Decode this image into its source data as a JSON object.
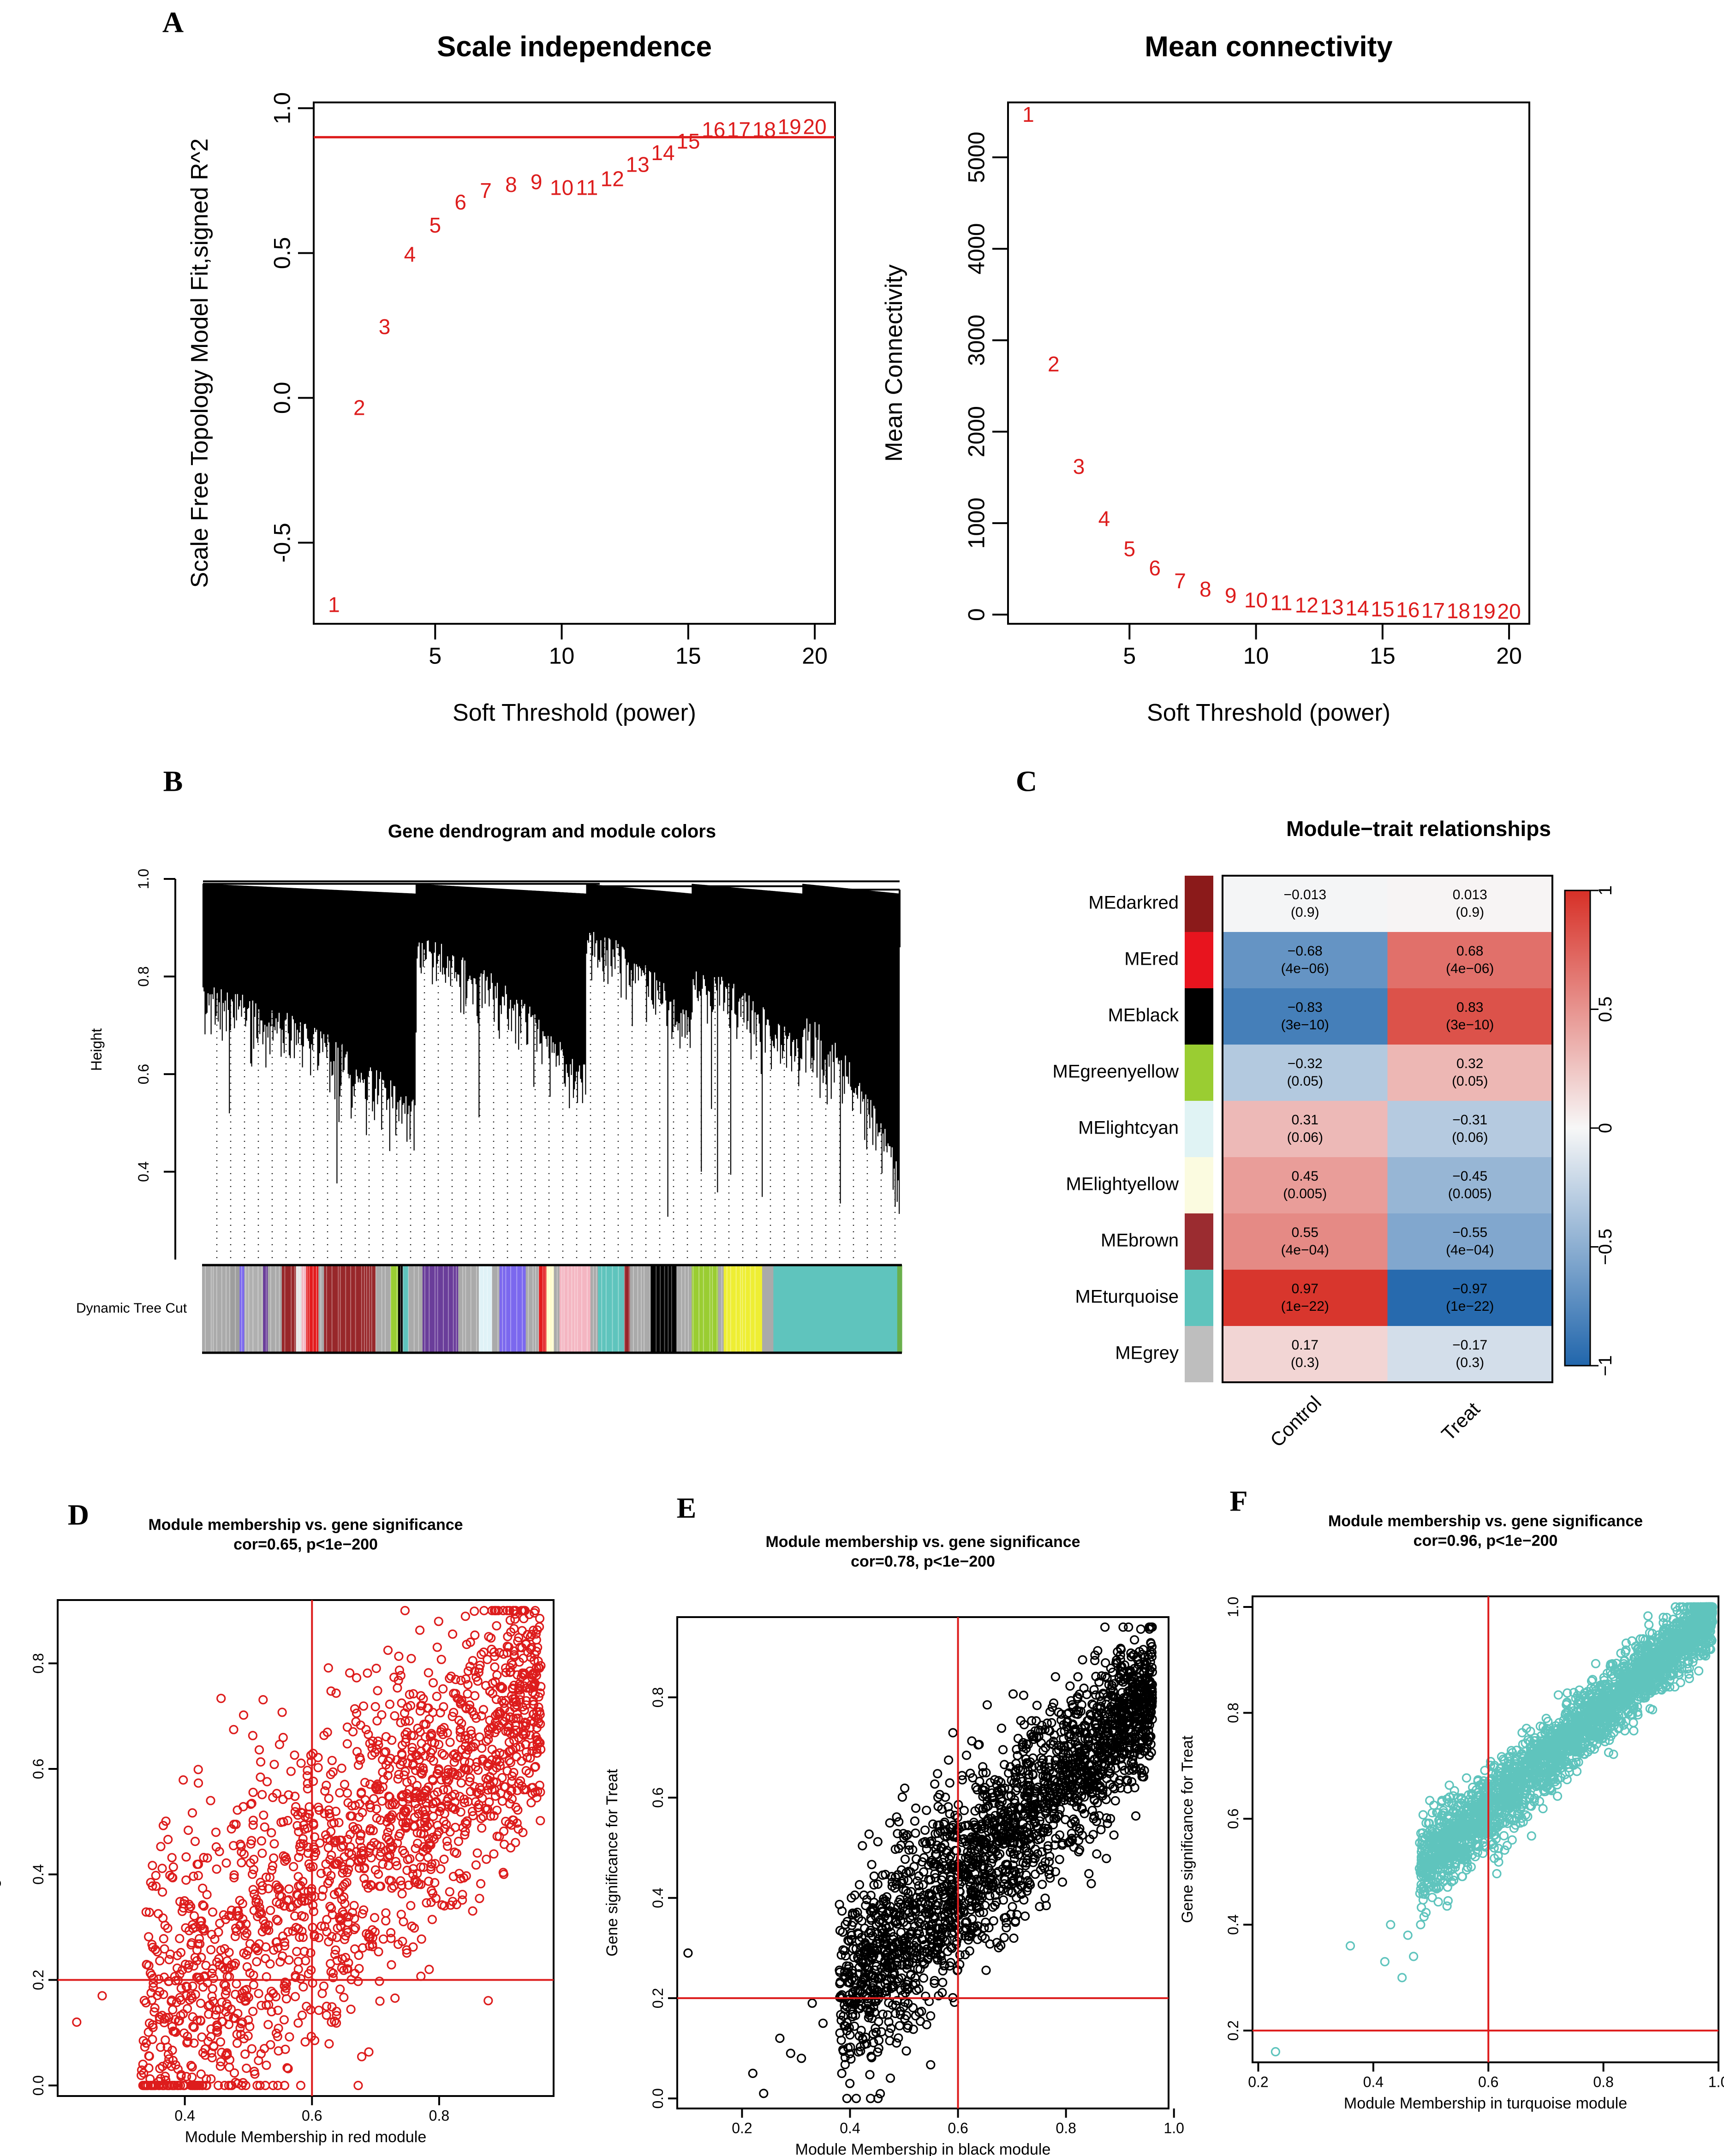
{
  "colors": {
    "red": "#dd1c1c",
    "black": "#000000",
    "turquoise": "#5fc4bd",
    "heat_low": "#2166ac",
    "heat_mid": "#f7f7f7",
    "heat_high": "#d73027"
  },
  "panel_letters": [
    "A",
    "B",
    "C",
    "D",
    "E",
    "F"
  ],
  "chart_data": [
    {
      "panel": "A",
      "type": "scatter",
      "title": "Scale independence",
      "xlabel": "Soft Threshold (power)",
      "ylabel": "Scale Free Topology Model Fit,signed R^2",
      "xlim": [
        0.2,
        20.8
      ],
      "ylim": [
        -0.78,
        1.02
      ],
      "xticks": [
        5,
        10,
        15,
        20
      ],
      "yticks": [
        -0.5,
        0.0,
        0.5,
        1.0
      ],
      "ytick_labels": [
        "-0.5",
        "0.0",
        "0.5",
        "1.0"
      ],
      "hline": 0.9,
      "points": [
        {
          "label": "1",
          "x": 1,
          "y": -0.72
        },
        {
          "label": "2",
          "x": 2,
          "y": -0.04
        },
        {
          "label": "3",
          "x": 3,
          "y": 0.24
        },
        {
          "label": "4",
          "x": 4,
          "y": 0.49
        },
        {
          "label": "5",
          "x": 5,
          "y": 0.59
        },
        {
          "label": "6",
          "x": 6,
          "y": 0.67
        },
        {
          "label": "7",
          "x": 7,
          "y": 0.71
        },
        {
          "label": "8",
          "x": 8,
          "y": 0.73
        },
        {
          "label": "9",
          "x": 9,
          "y": 0.74
        },
        {
          "label": "10",
          "x": 10,
          "y": 0.72
        },
        {
          "label": "11",
          "x": 11,
          "y": 0.72
        },
        {
          "label": "12",
          "x": 12,
          "y": 0.75
        },
        {
          "label": "13",
          "x": 13,
          "y": 0.8
        },
        {
          "label": "14",
          "x": 14,
          "y": 0.84
        },
        {
          "label": "15",
          "x": 15,
          "y": 0.88
        },
        {
          "label": "16",
          "x": 16,
          "y": 0.92
        },
        {
          "label": "17",
          "x": 17,
          "y": 0.92
        },
        {
          "label": "18",
          "x": 18,
          "y": 0.92
        },
        {
          "label": "19",
          "x": 19,
          "y": 0.93
        },
        {
          "label": "20",
          "x": 20,
          "y": 0.93
        }
      ]
    },
    {
      "panel": "A",
      "type": "scatter",
      "title": "Mean connectivity",
      "xlabel": "Soft Threshold (power)",
      "ylabel": "Mean Connectivity",
      "xlim": [
        0.2,
        20.8
      ],
      "ylim": [
        -100,
        5600
      ],
      "xticks": [
        5,
        10,
        15,
        20
      ],
      "yticks": [
        0,
        1000,
        2000,
        3000,
        4000,
        5000
      ],
      "points": [
        {
          "label": "1",
          "x": 1,
          "y": 5450
        },
        {
          "label": "2",
          "x": 2,
          "y": 2720
        },
        {
          "label": "3",
          "x": 3,
          "y": 1600
        },
        {
          "label": "4",
          "x": 4,
          "y": 1030
        },
        {
          "label": "5",
          "x": 5,
          "y": 700
        },
        {
          "label": "6",
          "x": 6,
          "y": 490
        },
        {
          "label": "7",
          "x": 7,
          "y": 350
        },
        {
          "label": "8",
          "x": 8,
          "y": 260
        },
        {
          "label": "9",
          "x": 9,
          "y": 190
        },
        {
          "label": "10",
          "x": 10,
          "y": 140
        },
        {
          "label": "11",
          "x": 11,
          "y": 110
        },
        {
          "label": "12",
          "x": 12,
          "y": 85
        },
        {
          "label": "13",
          "x": 13,
          "y": 65
        },
        {
          "label": "14",
          "x": 14,
          "y": 52
        },
        {
          "label": "15",
          "x": 15,
          "y": 42
        },
        {
          "label": "16",
          "x": 16,
          "y": 34
        },
        {
          "label": "17",
          "x": 17,
          "y": 28
        },
        {
          "label": "18",
          "x": 18,
          "y": 23
        },
        {
          "label": "19",
          "x": 19,
          "y": 19
        },
        {
          "label": "20",
          "x": 20,
          "y": 16
        }
      ]
    },
    {
      "panel": "B",
      "type": "dendrogram",
      "title": "Gene dendrogram and module colors",
      "ylabel": "Height",
      "ylim": [
        0.22,
        1.0
      ],
      "yticks": [
        0.4,
        0.6,
        0.8,
        1.0
      ],
      "ytick_labels": [
        "0.4",
        "0.6",
        "0.8",
        "1.0"
      ],
      "color_bar_label": "Dynamic Tree Cut",
      "module_strip": [
        {
          "color": "#aaaaaa",
          "w": 3
        },
        {
          "color": "#9e9e9e",
          "w": 1
        },
        {
          "color": "#7b68ee",
          "w": 0.5
        },
        {
          "color": "#b0b0b0",
          "w": 2
        },
        {
          "color": "#6a3d9a",
          "w": 0.5
        },
        {
          "color": "#aaaaaa",
          "w": 1.5
        },
        {
          "color": "#98272a",
          "w": 1.5
        },
        {
          "color": "#e5e5e5",
          "w": 0.6
        },
        {
          "color": "#f4b6c2",
          "w": 0.5
        },
        {
          "color": "#e31a1c",
          "w": 1.3
        },
        {
          "color": "#aaaaaa",
          "w": 0.6
        },
        {
          "color": "#98272a",
          "w": 5.5
        },
        {
          "color": "#aaaaaa",
          "w": 1.6
        },
        {
          "color": "#9acd32",
          "w": 0.8
        },
        {
          "color": "#000000",
          "w": 0.5
        },
        {
          "color": "#5fc4bd",
          "w": 0.6
        },
        {
          "color": "#aaaaaa",
          "w": 1.5
        },
        {
          "color": "#6a3d9a",
          "w": 3.8
        },
        {
          "color": "#aaaaaa",
          "w": 2.2
        },
        {
          "color": "#dff2f7",
          "w": 1.4
        },
        {
          "color": "#aaaaaa",
          "w": 0.8
        },
        {
          "color": "#7b68ee",
          "w": 2.8
        },
        {
          "color": "#aaaaaa",
          "w": 1.4
        },
        {
          "color": "#e31a1c",
          "w": 0.8
        },
        {
          "color": "#fffccc",
          "w": 0.8
        },
        {
          "color": "#aaaaaa",
          "w": 0.6
        },
        {
          "color": "#f4b6c2",
          "w": 3.3
        },
        {
          "color": "#aaaaaa",
          "w": 0.8
        },
        {
          "color": "#5fc4bd",
          "w": 2.8
        },
        {
          "color": "#98272a",
          "w": 0.6
        },
        {
          "color": "#aaaaaa",
          "w": 2.2
        },
        {
          "color": "#000000",
          "w": 2.8
        },
        {
          "color": "#aaaaaa",
          "w": 1.6
        },
        {
          "color": "#9acd32",
          "w": 2.8
        },
        {
          "color": "#aaaaaa",
          "w": 0.6
        },
        {
          "color": "#eeee33",
          "w": 4.1
        },
        {
          "color": "#aaaaaa",
          "w": 1.2
        },
        {
          "color": "#5fc4bd",
          "w": 13.2
        },
        {
          "color": "#6ab04c",
          "w": 0.5
        }
      ]
    },
    {
      "panel": "C",
      "type": "heatmap",
      "title": "Module−trait relationships",
      "columns": [
        "Control",
        "Treat"
      ],
      "rows": [
        {
          "name": "MEdarkred",
          "color": "#8b1a1a",
          "values": [
            "−0.013",
            "0.013"
          ],
          "p": [
            "(0.9)",
            "(0.9)"
          ],
          "r": [
            -0.013,
            0.013
          ]
        },
        {
          "name": "MEred",
          "color": "#e8141e",
          "values": [
            "−0.68",
            "0.68"
          ],
          "p": [
            "(4e−06)",
            "(4e−06)"
          ],
          "r": [
            -0.68,
            0.68
          ]
        },
        {
          "name": "MEblack",
          "color": "#000000",
          "values": [
            "−0.83",
            "0.83"
          ],
          "p": [
            "(3e−10)",
            "(3e−10)"
          ],
          "r": [
            -0.83,
            0.83
          ]
        },
        {
          "name": "MEgreenyellow",
          "color": "#9acd32",
          "values": [
            "−0.32",
            "0.32"
          ],
          "p": [
            "(0.05)",
            "(0.05)"
          ],
          "r": [
            -0.32,
            0.32
          ]
        },
        {
          "name": "MElightcyan",
          "color": "#e0f3f4",
          "values": [
            "0.31",
            "−0.31"
          ],
          "p": [
            "(0.06)",
            "(0.06)"
          ],
          "r": [
            0.31,
            -0.31
          ]
        },
        {
          "name": "MElightyellow",
          "color": "#fbfbe0",
          "values": [
            "0.45",
            "−0.45"
          ],
          "p": [
            "(0.005)",
            "(0.005)"
          ],
          "r": [
            0.45,
            -0.45
          ]
        },
        {
          "name": "MEbrown",
          "color": "#9b2c30",
          "values": [
            "0.55",
            "−0.55"
          ],
          "p": [
            "(4e−04)",
            "(4e−04)"
          ],
          "r": [
            0.55,
            -0.55
          ]
        },
        {
          "name": "MEturquoise",
          "color": "#5fc4bd",
          "values": [
            "0.97",
            "−0.97"
          ],
          "p": [
            "(1e−22)",
            "(1e−22)"
          ],
          "r": [
            0.97,
            -0.97
          ]
        },
        {
          "name": "MEgrey",
          "color": "#bebebe",
          "values": [
            "0.17",
            "−0.17"
          ],
          "p": [
            "(0.3)",
            "(0.3)"
          ],
          "r": [
            0.17,
            -0.17
          ]
        }
      ],
      "legend_ticks": [
        1,
        0.5,
        0,
        -0.5,
        -1
      ],
      "legend_tick_labels": [
        "1",
        "0.5",
        "0",
        "−0.5",
        "−1"
      ],
      "range": [
        -1,
        1
      ]
    },
    {
      "panel": "D",
      "type": "scatter",
      "title": "Module membership vs. gene significance",
      "subtitle": "cor=0.65, p<1e−200",
      "xlabel": "Module Membership in red module",
      "ylabel": "Gene significance for  Treat",
      "xlim": [
        0.2,
        0.98
      ],
      "ylim": [
        -0.02,
        0.92
      ],
      "xticks": [
        0.4,
        0.6,
        0.8
      ],
      "yticks": [
        0.0,
        0.2,
        0.4,
        0.6,
        0.8
      ],
      "xtick_labels": [
        "0.4",
        "0.6",
        "0.8"
      ],
      "ytick_labels": [
        "0.0",
        "0.2",
        "0.4",
        "0.6",
        "0.8"
      ],
      "vline": 0.6,
      "hline": 0.2,
      "point_color": "#dd1c1c",
      "n_points": 1700,
      "cloud": {
        "x_min": 0.33,
        "x_max": 0.96,
        "slope": 1.05,
        "intercept": -0.27,
        "sd": 0.15,
        "x_bias": 0.82
      },
      "outliers": [
        [
          0.23,
          0.12
        ],
        [
          0.27,
          0.17
        ],
        [
          0.35,
          0.11
        ],
        [
          0.36,
          0.13
        ],
        [
          0.37,
          0.01
        ],
        [
          0.41,
          0.17
        ],
        [
          0.43,
          0.34
        ],
        [
          0.45,
          0.41
        ]
      ]
    },
    {
      "panel": "E",
      "type": "scatter",
      "title": "Module membership vs. gene significance",
      "subtitle": "cor=0.78, p<1e−200",
      "xlabel": "Module Membership in black module",
      "ylabel": "Gene significance for  Treat",
      "xlim": [
        0.08,
        0.99
      ],
      "ylim": [
        -0.02,
        0.96
      ],
      "xticks": [
        0.2,
        0.4,
        0.6,
        0.8,
        1.0
      ],
      "yticks": [
        0.0,
        0.2,
        0.4,
        0.6,
        0.8
      ],
      "xtick_labels": [
        "0.2",
        "0.4",
        "0.6",
        "0.8",
        "1.0"
      ],
      "ytick_labels": [
        "0.0",
        "0.2",
        "0.4",
        "0.6",
        "0.8"
      ],
      "vline": 0.6,
      "hline": 0.2,
      "point_color": "#000000",
      "n_points": 2200,
      "cloud": {
        "x_min": 0.38,
        "x_max": 0.96,
        "slope": 1.05,
        "intercept": -0.2,
        "sd": 0.09,
        "x_bias": 0.85
      },
      "outliers": [
        [
          0.1,
          0.29
        ],
        [
          0.22,
          0.05
        ],
        [
          0.24,
          0.01
        ],
        [
          0.27,
          0.12
        ],
        [
          0.29,
          0.09
        ],
        [
          0.31,
          0.08
        ],
        [
          0.33,
          0.19
        ],
        [
          0.35,
          0.15
        ]
      ]
    },
    {
      "panel": "F",
      "type": "scatter",
      "title": "Module membership vs. gene significance",
      "subtitle": "cor=0.96, p<1e−200",
      "xlabel": "Module Membership in turquoise module",
      "ylabel": "Gene significance for  Treat",
      "xlim": [
        0.19,
        1.0
      ],
      "ylim": [
        0.14,
        1.02
      ],
      "xticks": [
        0.2,
        0.4,
        0.6,
        0.8,
        1.0
      ],
      "yticks": [
        0.2,
        0.4,
        0.6,
        0.8,
        1.0
      ],
      "xtick_labels": [
        "0.2",
        "0.4",
        "0.6",
        "0.8",
        "1.0"
      ],
      "ytick_labels": [
        "0.2",
        "0.4",
        "0.6",
        "0.8",
        "1.0"
      ],
      "vline": 0.6,
      "hline": 0.2,
      "point_color": "#5fc4bd",
      "n_points": 2600,
      "cloud": {
        "x_min": 0.48,
        "x_max": 0.99,
        "slope": 0.95,
        "intercept": 0.05,
        "sd": 0.035,
        "x_bias": 0.88
      },
      "outliers": [
        [
          0.23,
          0.16
        ],
        [
          0.36,
          0.36
        ],
        [
          0.42,
          0.33
        ],
        [
          0.43,
          0.4
        ],
        [
          0.45,
          0.3
        ],
        [
          0.46,
          0.38
        ],
        [
          0.47,
          0.34
        ]
      ]
    }
  ]
}
